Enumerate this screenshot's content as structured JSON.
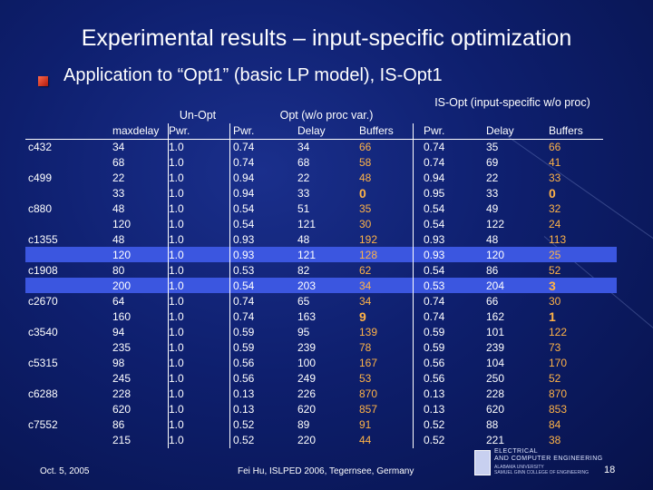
{
  "title": "Experimental results – input-specific optimization",
  "subtitle": "Application to “Opt1” (basic LP model), IS-Opt1",
  "headers": {
    "unopt": "Un-Opt",
    "opt": "Opt (w/o proc var.)",
    "isopt": "IS-Opt (input-specific w/o proc)",
    "maxdelay": "maxdelay",
    "pwr_unopt": "Pwr.",
    "pwr_opt": "Pwr.",
    "delay_opt": "Delay",
    "buffers_opt": "Buffers",
    "pwr_isopt": "Pwr.",
    "delay_isopt": "Delay",
    "buffers_isopt": "Buffers"
  },
  "rows": [
    {
      "bench": "c432",
      "md": "34",
      "pw": "1.0",
      "opw": "0.74",
      "od": "34",
      "ob": "66",
      "ipw": "0.74",
      "id": "35",
      "ib": "66"
    },
    {
      "bench": "",
      "md": "68",
      "pw": "1.0",
      "opw": "0.74",
      "od": "68",
      "ob": "58",
      "ipw": "0.74",
      "id": "69",
      "ib": "41"
    },
    {
      "bench": "c499",
      "md": "22",
      "pw": "1.0",
      "opw": "0.94",
      "od": "22",
      "ob": "48",
      "ipw": "0.94",
      "id": "22",
      "ib": "33"
    },
    {
      "bench": "",
      "md": "33",
      "pw": "1.0",
      "opw": "0.94",
      "od": "33",
      "ob": "0",
      "ipw": "0.95",
      "id": "33",
      "ib": "0"
    },
    {
      "bench": "c880",
      "md": "48",
      "pw": "1.0",
      "opw": "0.54",
      "od": "51",
      "ob": "35",
      "ipw": "0.54",
      "id": "49",
      "ib": "32"
    },
    {
      "bench": "",
      "md": "120",
      "pw": "1.0",
      "opw": "0.54",
      "od": "121",
      "ob": "30",
      "ipw": "0.54",
      "id": "122",
      "ib": "24"
    },
    {
      "bench": "c1355",
      "md": "48",
      "pw": "1.0",
      "opw": "0.93",
      "od": "48",
      "ob": "192",
      "ipw": "0.93",
      "id": "48",
      "ib": "113"
    },
    {
      "bench": "",
      "md": "120",
      "pw": "1.0",
      "opw": "0.93",
      "od": "121",
      "ob": "128",
      "ipw": "0.93",
      "id": "120",
      "ib": "25"
    },
    {
      "bench": "c1908",
      "md": "80",
      "pw": "1.0",
      "opw": "0.53",
      "od": "82",
      "ob": "62",
      "ipw": "0.54",
      "id": "86",
      "ib": "52"
    },
    {
      "bench": "",
      "md": "200",
      "pw": "1.0",
      "opw": "0.54",
      "od": "203",
      "ob": "34",
      "ipw": "0.53",
      "id": "204",
      "ib": "3"
    },
    {
      "bench": "c2670",
      "md": "64",
      "pw": "1.0",
      "opw": "0.74",
      "od": "65",
      "ob": "34",
      "ipw": "0.74",
      "id": "66",
      "ib": "30"
    },
    {
      "bench": "",
      "md": "160",
      "pw": "1.0",
      "opw": "0.74",
      "od": "163",
      "ob": "9",
      "ipw": "0.74",
      "id": "162",
      "ib": "1"
    },
    {
      "bench": "c3540",
      "md": "94",
      "pw": "1.0",
      "opw": "0.59",
      "od": "95",
      "ob": "139",
      "ipw": "0.59",
      "id": "101",
      "ib": "122"
    },
    {
      "bench": "",
      "md": "235",
      "pw": "1.0",
      "opw": "0.59",
      "od": "239",
      "ob": "78",
      "ipw": "0.59",
      "id": "239",
      "ib": "73"
    },
    {
      "bench": "c5315",
      "md": "98",
      "pw": "1.0",
      "opw": "0.56",
      "od": "100",
      "ob": "167",
      "ipw": "0.56",
      "id": "104",
      "ib": "170"
    },
    {
      "bench": "",
      "md": "245",
      "pw": "1.0",
      "opw": "0.56",
      "od": "249",
      "ob": "53",
      "ipw": "0.56",
      "id": "250",
      "ib": "52"
    },
    {
      "bench": "c6288",
      "md": "228",
      "pw": "1.0",
      "opw": "0.13",
      "od": "226",
      "ob": "870",
      "ipw": "0.13",
      "id": "228",
      "ib": "870"
    },
    {
      "bench": "",
      "md": "620",
      "pw": "1.0",
      "opw": "0.13",
      "od": "620",
      "ob": "857",
      "ipw": "0.13",
      "id": "620",
      "ib": "853"
    },
    {
      "bench": "c7552",
      "md": "86",
      "pw": "1.0",
      "opw": "0.52",
      "od": "89",
      "ob": "91",
      "ipw": "0.52",
      "id": "88",
      "ib": "84"
    },
    {
      "bench": "",
      "md": "215",
      "pw": "1.0",
      "opw": "0.52",
      "od": "220",
      "ob": "44",
      "ipw": "0.52",
      "id": "221",
      "ib": "38"
    }
  ],
  "highlight_rows": [
    7,
    9
  ],
  "footer": {
    "date": "Oct. 5, 2005",
    "center": "Fei Hu, ISLPED 2006, Tegernsee, Germany",
    "page": "18"
  },
  "logo": {
    "line1": "ELECTRICAL",
    "line2": "AND COMPUTER ENGINEERING",
    "line3": "ALABAMA UNIVERSITY",
    "line4": "SAMUEL GINN COLLEGE OF ENGINEERING"
  },
  "colors": {
    "background": "#0e1f6e",
    "highlight": "#3b56e0",
    "buffer_text": "#ffb347",
    "bullet": "#d0301a"
  }
}
